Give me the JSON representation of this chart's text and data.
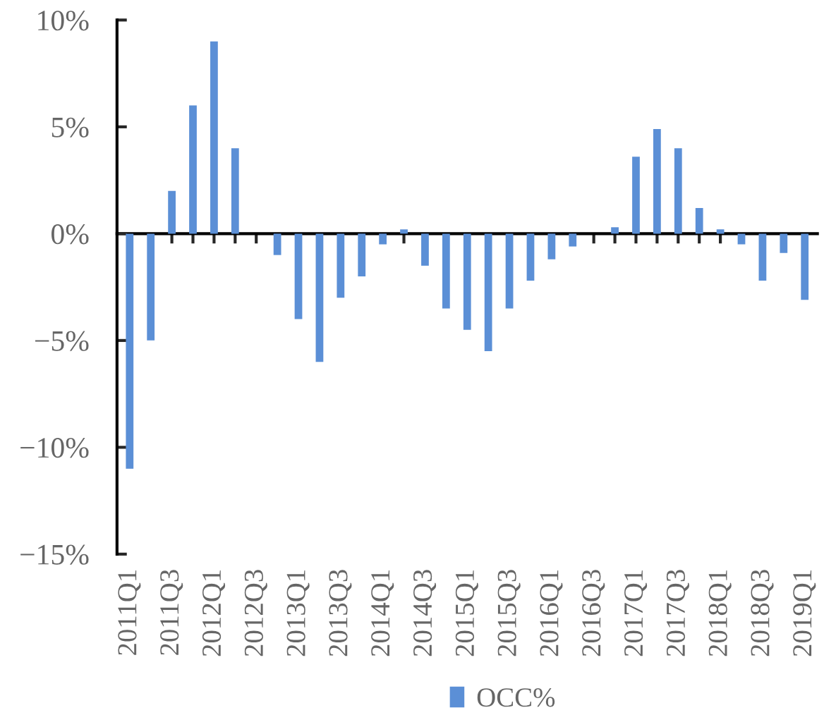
{
  "chart_data": {
    "type": "bar",
    "categories": [
      "2011Q1",
      null,
      "2011Q3",
      null,
      "2012Q1",
      null,
      "2012Q3",
      null,
      "2013Q1",
      null,
      "2013Q3",
      null,
      "2014Q1",
      null,
      "2014Q3",
      null,
      "2015Q1",
      null,
      "2015Q3",
      null,
      "2016Q1",
      null,
      "2016Q3",
      null,
      "2017Q1",
      null,
      "2017Q3",
      null,
      "2018Q1",
      null,
      "2018Q3",
      null,
      "2019Q1"
    ],
    "series": [
      {
        "name": "OCC%",
        "color": "#5b8fd6",
        "values": [
          -11.0,
          -5.0,
          2.0,
          6.0,
          9.0,
          4.0,
          0,
          -1.0,
          -4.0,
          -6.0,
          -3.0,
          -2.0,
          -0.5,
          0.2,
          -1.5,
          -3.5,
          -4.5,
          -5.5,
          -3.5,
          -2.2,
          -1.2,
          -0.6,
          0,
          0.3,
          3.6,
          4.9,
          4.0,
          1.2,
          0.2,
          -0.5,
          -2.2,
          -0.9,
          -3.1
        ]
      }
    ],
    "ylim": [
      -15,
      10
    ],
    "yticks": [
      {
        "value": -15,
        "label": "−15%"
      },
      {
        "value": -10,
        "label": "−10%"
      },
      {
        "value": -5,
        "label": "−5%"
      },
      {
        "value": 0,
        "label": "0%"
      },
      {
        "value": 5,
        "label": "5%"
      },
      {
        "value": 10,
        "label": "10%"
      }
    ],
    "legend": "bottom"
  }
}
